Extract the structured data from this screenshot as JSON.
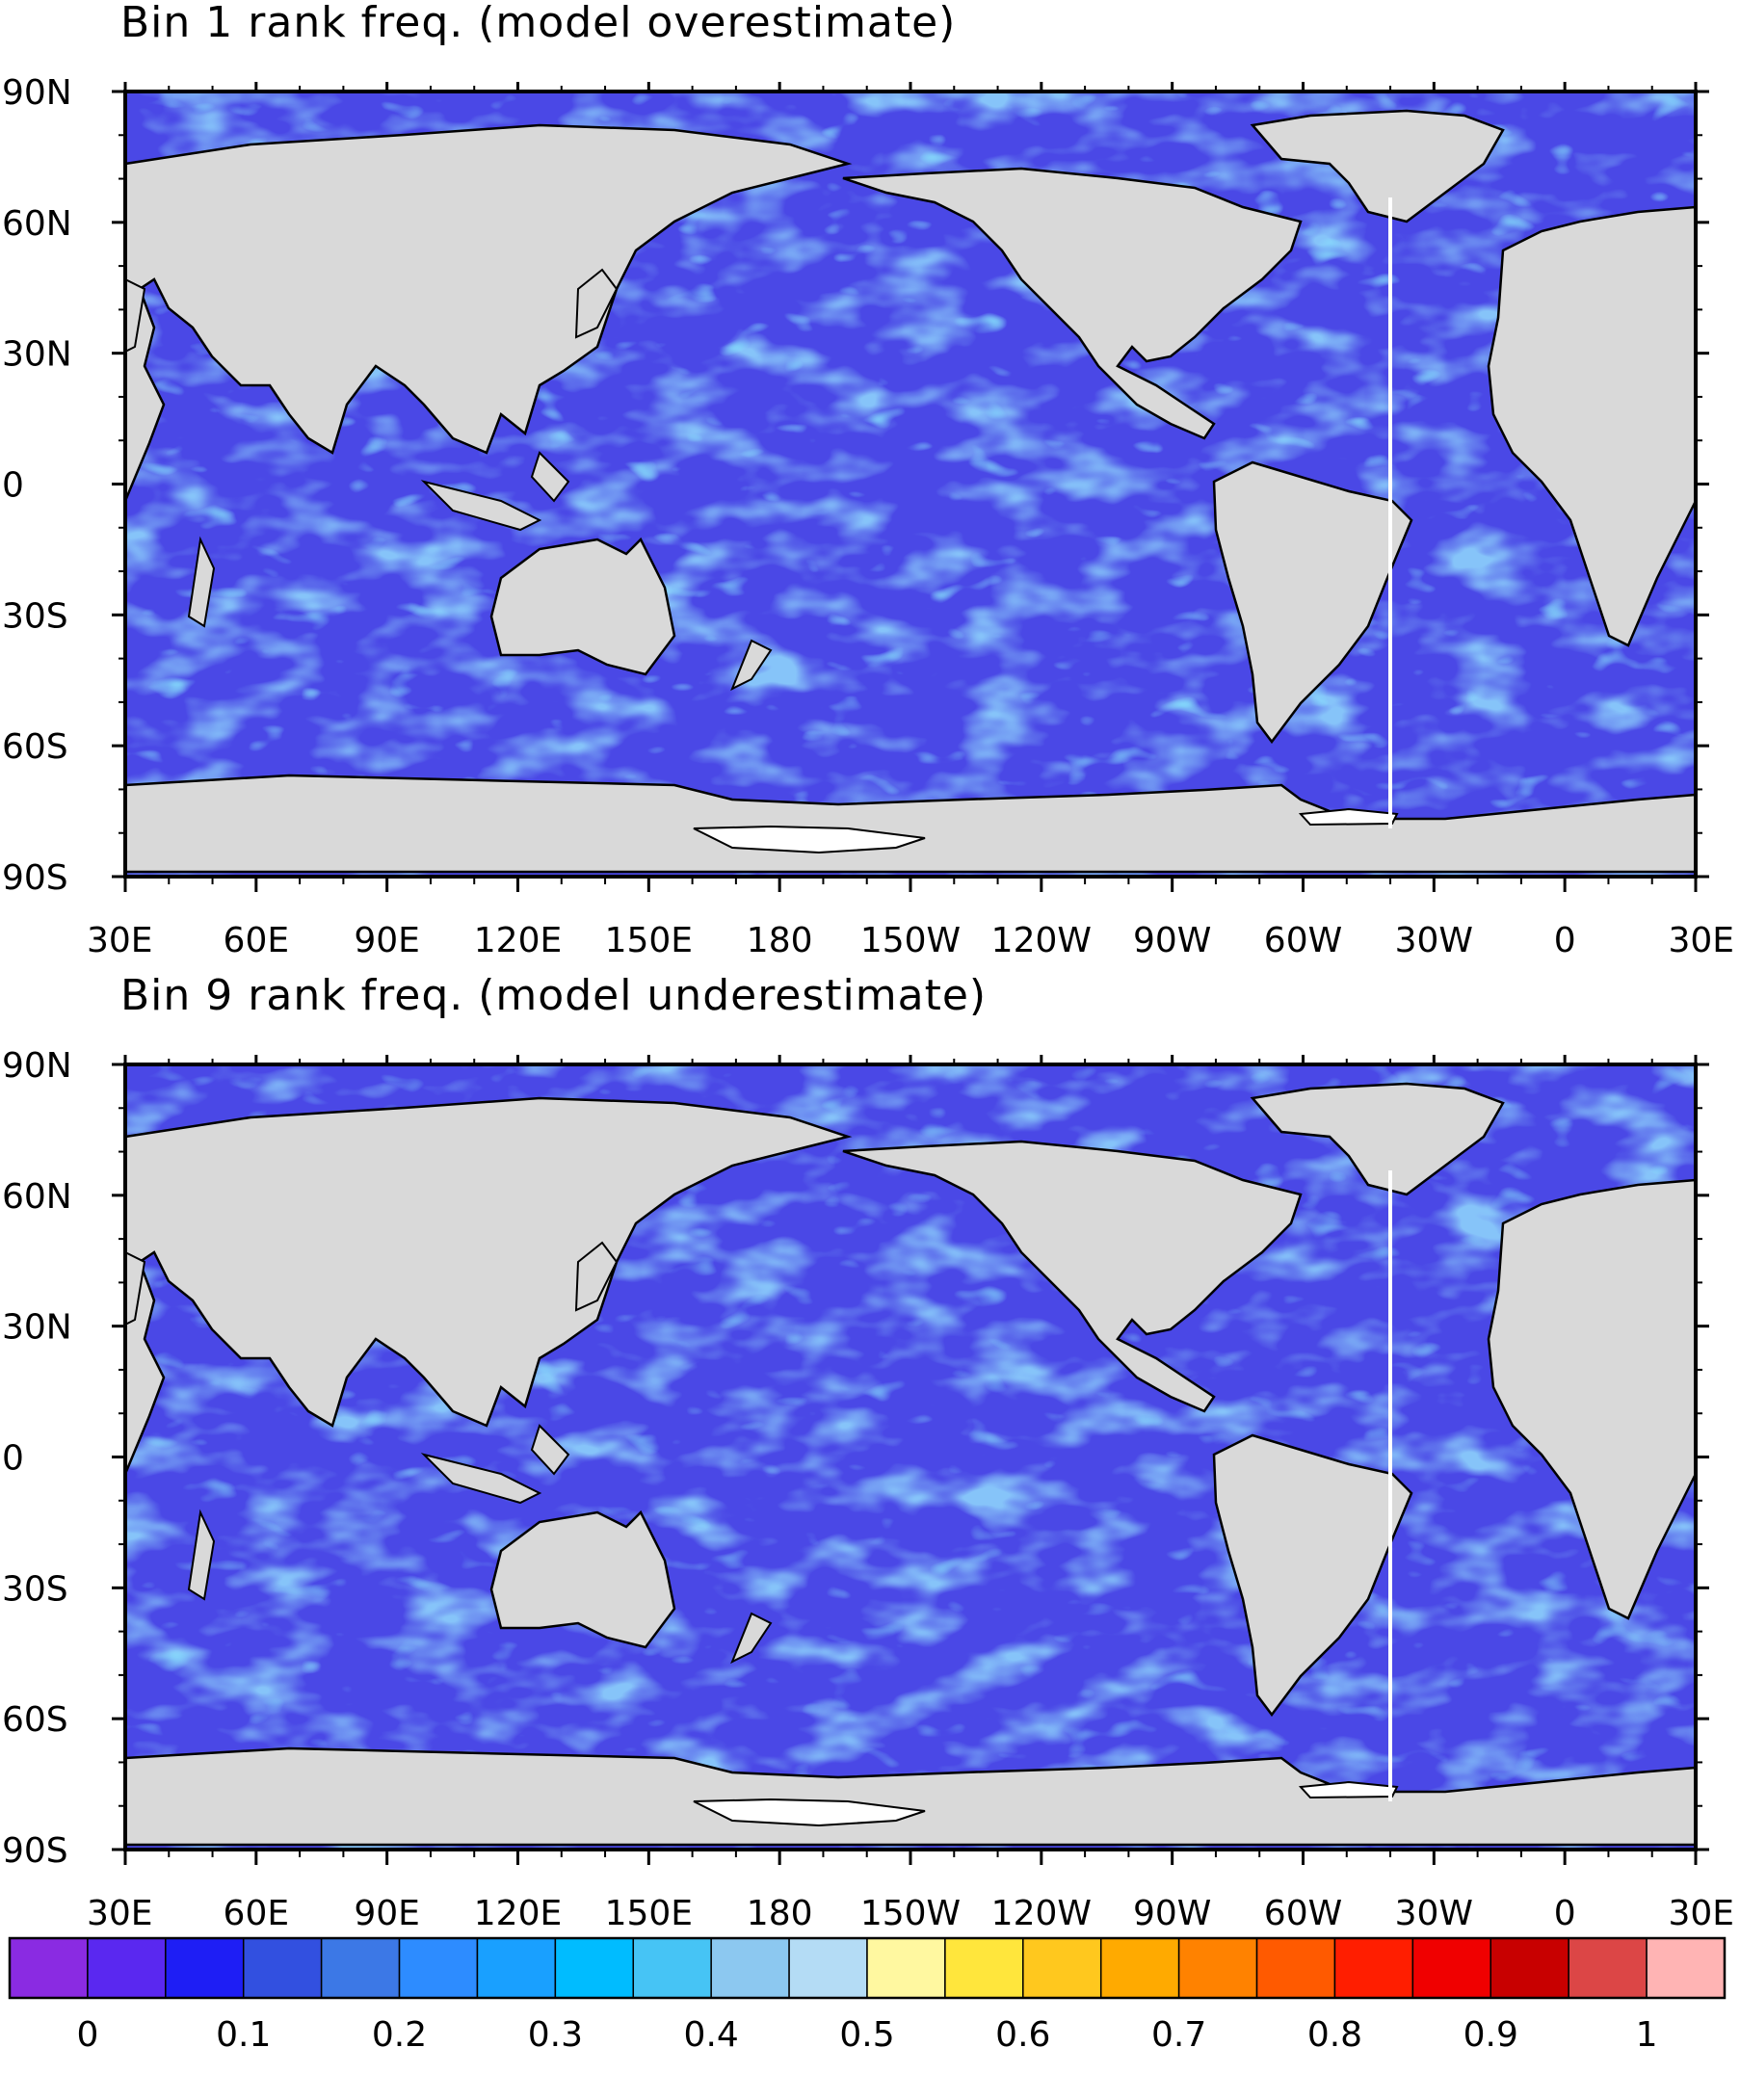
{
  "panels": [
    {
      "title": "Bin 1 rank freq. (model overestimate)",
      "lat_labels": [
        "90N",
        "60N",
        "30N",
        "0",
        "30S",
        "60S",
        "90S"
      ],
      "lon_labels": [
        "30E",
        "60E",
        "90E",
        "120E",
        "150E",
        "180",
        "150W",
        "120W",
        "90W",
        "60W",
        "30W",
        "0",
        "30E"
      ]
    },
    {
      "title": "Bin 9 rank freq. (model underestimate)",
      "lat_labels": [
        "90N",
        "60N",
        "30N",
        "0",
        "30S",
        "60S",
        "90S"
      ],
      "lon_labels": [
        "30E",
        "60E",
        "90E",
        "120E",
        "150E",
        "180",
        "150W",
        "120W",
        "90W",
        "60W",
        "30W",
        "0",
        "30E"
      ]
    }
  ],
  "colorbar": {
    "labels": [
      "0",
      "0.1",
      "0.2",
      "0.3",
      "0.4",
      "0.5",
      "0.6",
      "0.7",
      "0.8",
      "0.9",
      "1"
    ],
    "colors": [
      "#8a2be2",
      "#5a28f0",
      "#1e1ef5",
      "#3250e0",
      "#3c78e6",
      "#2d8cff",
      "#19a0ff",
      "#00bcff",
      "#46c4f5",
      "#8cc8f0",
      "#b4dcf5",
      "#fff8a0",
      "#ffe63c",
      "#ffc81e",
      "#ffaa00",
      "#ff8200",
      "#ff5a00",
      "#ff1e00",
      "#f00000",
      "#c80000",
      "#dc4646",
      "#ffb4b4"
    ]
  },
  "colors": {
    "ocean_base": "#4a48e6",
    "ocean_light": "#3f8cf0",
    "ocean_cyan": "#3cc8f5",
    "land": "#d9d9d9",
    "ice": "#ffffff"
  }
}
